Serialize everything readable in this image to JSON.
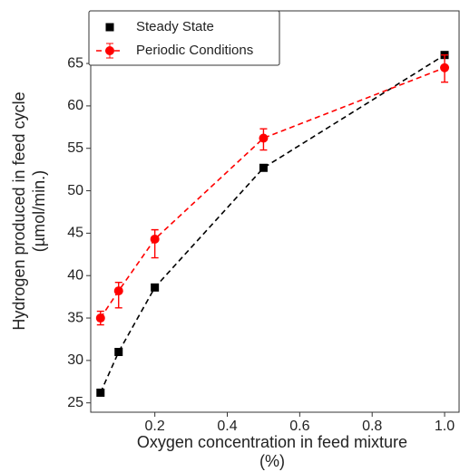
{
  "chart_data": {
    "type": "line",
    "xlabel": [
      "Oxygen concentration in feed mixture",
      "(%)"
    ],
    "ylabel": [
      "Hydrogen produced in feed cycle",
      "(µmol/min.)"
    ],
    "x": [
      0.05,
      0.1,
      0.2,
      0.5,
      1.0
    ],
    "series": [
      {
        "name": "Steady State",
        "color": "#000000",
        "marker": "square",
        "values": [
          26.2,
          31.0,
          38.6,
          52.7,
          66.0
        ]
      },
      {
        "name": "Periodic Conditions",
        "color": "#ff0000",
        "marker": "circle",
        "values": [
          35.0,
          38.2,
          44.3,
          56.2,
          64.5
        ],
        "error_lower": [
          0.8,
          2.0,
          2.2,
          1.4,
          1.7
        ],
        "error_upper": [
          0.8,
          1.0,
          1.1,
          1.1,
          1.5
        ]
      }
    ],
    "xlim": [
      0.023,
      1.04
    ],
    "xticks": [
      0.2,
      0.4,
      0.6,
      0.8,
      {
        "value": 1,
        "label": "1.0"
      }
    ],
    "ylim": [
      23.9,
      71.2
    ],
    "yticks": [
      25,
      30,
      35,
      40,
      45,
      50,
      55,
      60,
      65
    ],
    "legend": "upper left"
  }
}
